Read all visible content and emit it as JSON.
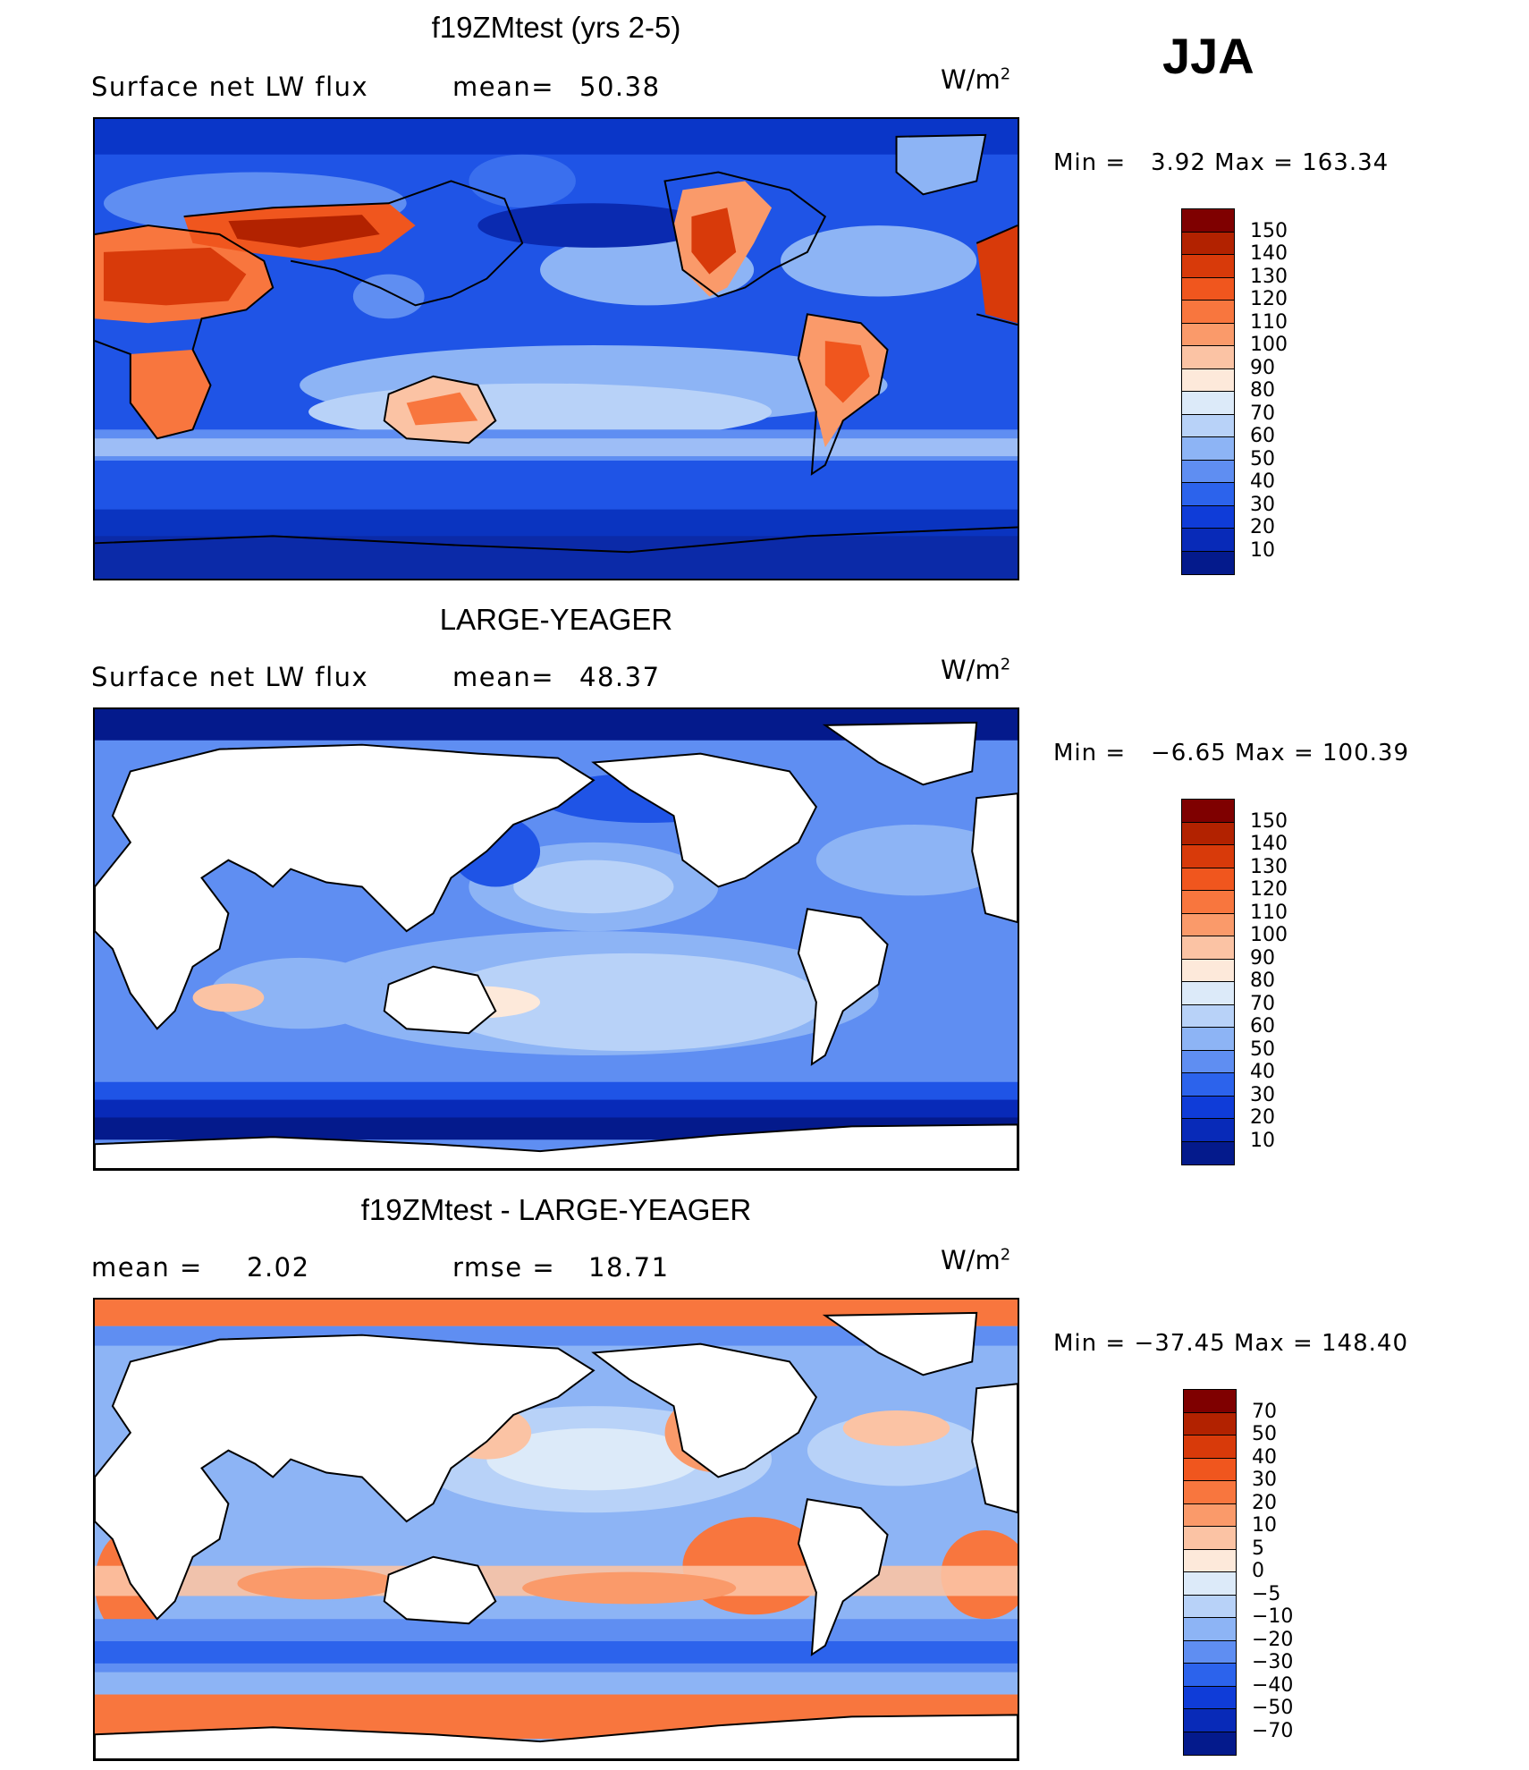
{
  "season": "JJA",
  "units": "W/m",
  "units_sup": "2",
  "panels": [
    {
      "id": "model",
      "title": "f19ZMtest (yrs 2-5)",
      "left_label": "Surface net LW flux",
      "stat_label": "mean=",
      "stat_value": "50.38",
      "min_label": "Min =",
      "min_value": "3.92",
      "max_label": "Max =",
      "max_value": "163.34",
      "colorbar": "abs"
    },
    {
      "id": "obs",
      "title": "LARGE-YEAGER",
      "left_label": "Surface net LW flux",
      "stat_label": "mean=",
      "stat_value": "48.37",
      "min_label": "Min =",
      "min_value": "−6.65",
      "max_label": "Max =",
      "max_value": "100.39",
      "colorbar": "abs"
    },
    {
      "id": "diff",
      "title": "f19ZMtest - LARGE-YEAGER",
      "left_label": "mean =",
      "left_value": "2.02",
      "stat_label": "rmse =",
      "stat_value": "18.71",
      "min_label": "Min =",
      "min_value": "−37.45",
      "max_label": "Max =",
      "max_value": "148.40",
      "colorbar": "diff"
    }
  ],
  "colorbars": {
    "abs": {
      "labels": [
        "150",
        "140",
        "130",
        "120",
        "110",
        "100",
        "90",
        "80",
        "70",
        "60",
        "50",
        "40",
        "30",
        "20",
        "10"
      ],
      "colors": [
        "#7f0000",
        "#b22200",
        "#d83a0a",
        "#f0561e",
        "#f8763e",
        "#fa9a6a",
        "#fbc3a4",
        "#fde9da",
        "#dceaf9",
        "#b8d2f8",
        "#8db4f5",
        "#5f8ef2",
        "#2c63ec",
        "#0f3cd8",
        "#082ab8",
        "#041a8c"
      ]
    },
    "diff": {
      "labels": [
        "70",
        "50",
        "40",
        "30",
        "20",
        "10",
        "5",
        "0",
        "−5",
        "−10",
        "−20",
        "−30",
        "−40",
        "−50",
        "−70"
      ],
      "colors": [
        "#7f0000",
        "#b22200",
        "#d83a0a",
        "#f0561e",
        "#f8763e",
        "#fa9a6a",
        "#fbc3a4",
        "#fde9da",
        "#dceaf9",
        "#b8d2f8",
        "#8db4f5",
        "#5f8ef2",
        "#2c63ec",
        "#0f3cd8",
        "#082ab8",
        "#041a8c"
      ]
    }
  }
}
